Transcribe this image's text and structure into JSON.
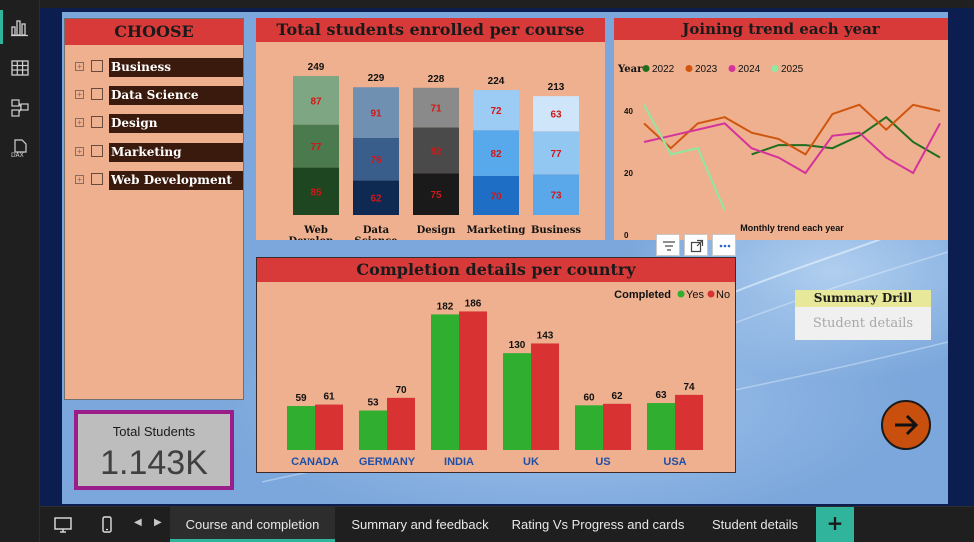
{
  "slicer": {
    "title": "CHOOSE",
    "items": [
      {
        "label": "Business"
      },
      {
        "label": "Data Science"
      },
      {
        "label": "Design"
      },
      {
        "label": "Marketing"
      },
      {
        "label": "Web Development"
      }
    ],
    "expander_glyph": "+"
  },
  "kpi": {
    "label": "Total Students",
    "value": "1.143K"
  },
  "summary_drill": {
    "title": "Summary Drill",
    "button_label": "Student details"
  },
  "tabs": [
    {
      "label": "Course and completion",
      "active": true
    },
    {
      "label": "Summary and feedback",
      "active": false
    },
    {
      "label": "Rating Vs Progress and cards",
      "active": false
    },
    {
      "label": "Student details",
      "active": false
    }
  ],
  "add_page_label": "+",
  "colors": {
    "panel_bg": "#eeb08f",
    "title_bg": "#d83a3a",
    "page_bg": "#7ba7dc",
    "yes": "#2fae2f",
    "no": "#d83232",
    "accent": "#30b49c",
    "kpi_border": "#9b1d8a"
  },
  "chart_data": [
    {
      "type": "bar",
      "stacked": true,
      "title": "Total students enrolled per course",
      "categories": [
        "Web Develop...",
        "Data Science",
        "Design",
        "Marketing",
        "Business"
      ],
      "totals": [
        249,
        229,
        228,
        224,
        213
      ],
      "series": [
        {
          "values": [
            85,
            62,
            75,
            70,
            73
          ]
        },
        {
          "values": [
            77,
            76,
            82,
            82,
            77
          ]
        },
        {
          "values": [
            87,
            91,
            71,
            72,
            63
          ]
        }
      ],
      "segment_colors": [
        [
          "#1e4620",
          "#4a7a4e",
          "#7fa682"
        ],
        [
          "#0f2a52",
          "#3a5e8c",
          "#7090b2"
        ],
        [
          "#1a1a1a",
          "#4a4a4a",
          "#8a8a8a"
        ],
        [
          "#1e6ec6",
          "#58a8ec",
          "#9ccbf4"
        ],
        [
          "#5aa7ea",
          "#92c7f2",
          "#cfe5fa"
        ]
      ],
      "label_color": "#d01818"
    },
    {
      "type": "line",
      "title": "Joining trend each year",
      "xlabel": "Monthly trend each year",
      "legend_title": "Year",
      "y_ticks": [
        0,
        20,
        40
      ],
      "ylim": [
        0,
        50
      ],
      "x_count": 12,
      "series": [
        {
          "name": "2022",
          "color": "#1f6e1f",
          "values": [
            null,
            null,
            null,
            null,
            26,
            29,
            29,
            28,
            32,
            38,
            30,
            25
          ]
        },
        {
          "name": "2023",
          "color": "#d0560f",
          "values": [
            36,
            28,
            36,
            38,
            33,
            31,
            26,
            39,
            42,
            34,
            42,
            40
          ]
        },
        {
          "name": "2024",
          "color": "#d4339c",
          "values": [
            30,
            32,
            34,
            36,
            28,
            25,
            20,
            32,
            33,
            25,
            20,
            36
          ]
        },
        {
          "name": "2025",
          "color": "#8fe8a0",
          "values": [
            42,
            26,
            28,
            8,
            null,
            null,
            null,
            null,
            null,
            null,
            null,
            null
          ]
        }
      ]
    },
    {
      "type": "bar",
      "grouped": true,
      "title": "Completion details per country",
      "legend_title": "Completed",
      "categories": [
        "CANADA",
        "GERMANY",
        "INDIA",
        "UK",
        "US",
        "USA"
      ],
      "series": [
        {
          "name": "Yes",
          "color": "#2fae2f",
          "values": [
            59,
            53,
            182,
            130,
            60,
            63
          ]
        },
        {
          "name": "No",
          "color": "#d83232",
          "values": [
            61,
            70,
            186,
            143,
            62,
            74
          ]
        }
      ],
      "ylim": [
        0,
        200
      ]
    }
  ]
}
